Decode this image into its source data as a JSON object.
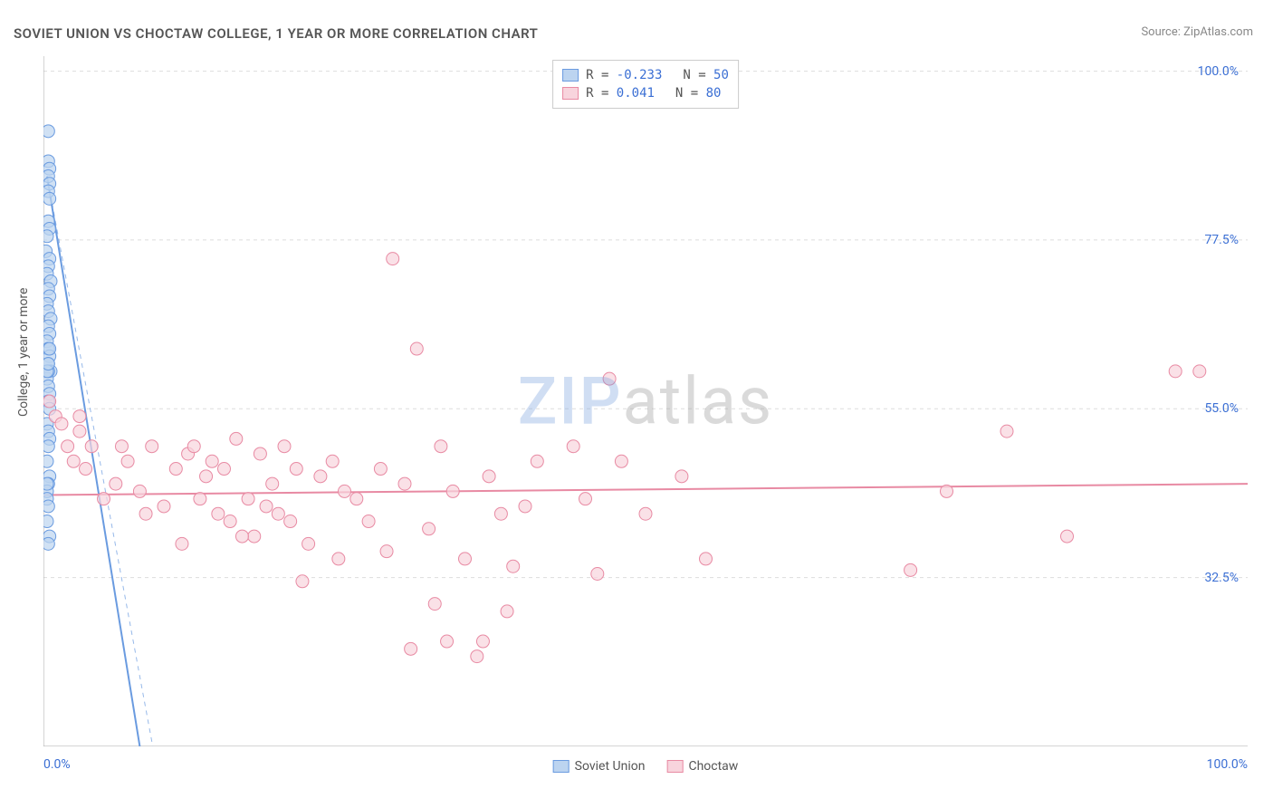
{
  "title": "SOVIET UNION VS CHOCTAW COLLEGE, 1 YEAR OR MORE CORRELATION CHART",
  "source_label": "Source:",
  "source_name": "ZipAtlas.com",
  "y_axis_label": "College, 1 year or more",
  "watermark_zip": "ZIP",
  "watermark_atlas": "atlas",
  "chart": {
    "type": "scatter",
    "background_color": "#ffffff",
    "grid_color": "#dddddd",
    "axis_color": "#aaaaaa",
    "tick_label_color": "#3b6fd4",
    "xlim": [
      0,
      100
    ],
    "ylim": [
      10,
      102
    ],
    "x_ticks": [
      0,
      100
    ],
    "x_tick_labels": [
      "0.0%",
      "100.0%"
    ],
    "x_minor_ticks": [
      0,
      8.33,
      16.67,
      25,
      33.33,
      41.67,
      50,
      58.33,
      66.67,
      75,
      83.33,
      91.67,
      100
    ],
    "y_ticks": [
      32.5,
      55.0,
      77.5,
      100.0
    ],
    "y_tick_labels": [
      "32.5%",
      "55.0%",
      "77.5%",
      "100.0%"
    ],
    "series": [
      {
        "name": "Soviet Union",
        "color_fill": "#bcd4f0",
        "color_stroke": "#6a9be0",
        "marker_radius": 7,
        "r_value": "-0.233",
        "n_value": "50",
        "trend": {
          "x0": 0.3,
          "y0": 86,
          "x1": 8,
          "y1": 10
        },
        "points": [
          [
            0.4,
            92
          ],
          [
            0.4,
            88
          ],
          [
            0.5,
            87
          ],
          [
            0.4,
            86
          ],
          [
            0.5,
            85
          ],
          [
            0.4,
            84
          ],
          [
            0.5,
            83
          ],
          [
            0.4,
            80
          ],
          [
            0.5,
            79
          ],
          [
            0.3,
            78
          ],
          [
            0.2,
            76
          ],
          [
            0.5,
            75
          ],
          [
            0.4,
            74
          ],
          [
            0.3,
            73
          ],
          [
            0.6,
            72
          ],
          [
            0.4,
            71
          ],
          [
            0.5,
            70
          ],
          [
            0.3,
            69
          ],
          [
            0.4,
            68
          ],
          [
            0.6,
            67
          ],
          [
            0.4,
            66
          ],
          [
            0.5,
            65
          ],
          [
            0.3,
            64
          ],
          [
            0.4,
            63
          ],
          [
            0.5,
            62
          ],
          [
            0.4,
            61
          ],
          [
            0.6,
            60
          ],
          [
            0.3,
            59
          ],
          [
            0.4,
            58
          ],
          [
            0.5,
            57
          ],
          [
            0.4,
            56
          ],
          [
            0.5,
            55
          ],
          [
            0.3,
            53
          ],
          [
            0.4,
            52
          ],
          [
            0.5,
            51
          ],
          [
            0.4,
            50
          ],
          [
            0.3,
            48
          ],
          [
            0.5,
            46
          ],
          [
            0.4,
            45
          ],
          [
            0.3,
            44
          ],
          [
            0.3,
            43
          ],
          [
            0.4,
            42
          ],
          [
            0.3,
            40
          ],
          [
            0.5,
            38
          ],
          [
            0.4,
            37
          ],
          [
            0.3,
            45
          ],
          [
            0.4,
            60
          ],
          [
            0.5,
            63
          ],
          [
            0.3,
            60
          ],
          [
            0.4,
            61
          ]
        ]
      },
      {
        "name": "Choctaw",
        "color_fill": "#f8d4dd",
        "color_stroke": "#e88aa3",
        "marker_radius": 7,
        "r_value": "0.041",
        "n_value": "80",
        "trend": {
          "x0": 0,
          "y0": 43.5,
          "x1": 100,
          "y1": 45
        },
        "points": [
          [
            0.5,
            56
          ],
          [
            1,
            54
          ],
          [
            1.5,
            53
          ],
          [
            2,
            50
          ],
          [
            2.5,
            48
          ],
          [
            3,
            52
          ],
          [
            3.5,
            47
          ],
          [
            4,
            50
          ],
          [
            5,
            43
          ],
          [
            6,
            45
          ],
          [
            7,
            48
          ],
          [
            8,
            44
          ],
          [
            9,
            50
          ],
          [
            10,
            42
          ],
          [
            11,
            47
          ],
          [
            12,
            49
          ],
          [
            11.5,
            37
          ],
          [
            12.5,
            50
          ],
          [
            13,
            43
          ],
          [
            14,
            48
          ],
          [
            14.5,
            41
          ],
          [
            15,
            47
          ],
          [
            15.5,
            40
          ],
          [
            16,
            51
          ],
          [
            17,
            43
          ],
          [
            17.5,
            38
          ],
          [
            18,
            49
          ],
          [
            18.5,
            42
          ],
          [
            19,
            45
          ],
          [
            20,
            50
          ],
          [
            20.5,
            40
          ],
          [
            21,
            47
          ],
          [
            21.5,
            32
          ],
          [
            22,
            37
          ],
          [
            23,
            46
          ],
          [
            24,
            48
          ],
          [
            25,
            44
          ],
          [
            26,
            43
          ],
          [
            27,
            40
          ],
          [
            28,
            47
          ],
          [
            28.5,
            36
          ],
          [
            29,
            75
          ],
          [
            30,
            45
          ],
          [
            30.5,
            23
          ],
          [
            31,
            63
          ],
          [
            32,
            39
          ],
          [
            32.5,
            29
          ],
          [
            33,
            50
          ],
          [
            33.5,
            24
          ],
          [
            34,
            44
          ],
          [
            35,
            35
          ],
          [
            36,
            22
          ],
          [
            36.5,
            24
          ],
          [
            37,
            46
          ],
          [
            38,
            41
          ],
          [
            38.5,
            28
          ],
          [
            39,
            34
          ],
          [
            40,
            42
          ],
          [
            41,
            48
          ],
          [
            44,
            50
          ],
          [
            45,
            43
          ],
          [
            46,
            33
          ],
          [
            47,
            59
          ],
          [
            48,
            48
          ],
          [
            50,
            41
          ],
          [
            53,
            46
          ],
          [
            55,
            35
          ],
          [
            72,
            33.5
          ],
          [
            75,
            44
          ],
          [
            80,
            52
          ],
          [
            85,
            38
          ],
          [
            94,
            60
          ],
          [
            96,
            60
          ],
          [
            3,
            54
          ],
          [
            6.5,
            50
          ],
          [
            8.5,
            41
          ],
          [
            13.5,
            46
          ],
          [
            16.5,
            38
          ],
          [
            19.5,
            41
          ],
          [
            24.5,
            35
          ]
        ]
      }
    ],
    "legend_top": {
      "r_label": "R =",
      "n_label": "N ="
    },
    "legend_bottom": [
      "Soviet Union",
      "Choctaw"
    ]
  }
}
